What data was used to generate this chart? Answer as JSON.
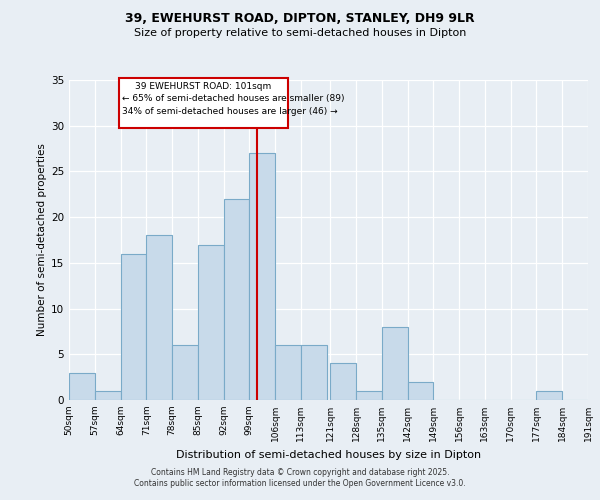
{
  "title": "39, EWEHURST ROAD, DIPTON, STANLEY, DH9 9LR",
  "subtitle": "Size of property relative to semi-detached houses in Dipton",
  "xlabel": "Distribution of semi-detached houses by size in Dipton",
  "ylabel": "Number of semi-detached properties",
  "footer_line1": "Contains HM Land Registry data © Crown copyright and database right 2025.",
  "footer_line2": "Contains public sector information licensed under the Open Government Licence v3.0.",
  "bins": [
    50,
    57,
    64,
    71,
    78,
    85,
    92,
    99,
    106,
    113,
    121,
    128,
    135,
    142,
    149,
    156,
    163,
    170,
    177,
    184,
    191
  ],
  "bin_labels": [
    "50sqm",
    "57sqm",
    "64sqm",
    "71sqm",
    "78sqm",
    "85sqm",
    "92sqm",
    "99sqm",
    "106sqm",
    "113sqm",
    "121sqm",
    "128sqm",
    "135sqm",
    "142sqm",
    "149sqm",
    "156sqm",
    "163sqm",
    "170sqm",
    "177sqm",
    "184sqm",
    "191sqm"
  ],
  "counts": [
    3,
    1,
    16,
    18,
    6,
    17,
    22,
    27,
    6,
    6,
    4,
    1,
    8,
    2,
    0,
    0,
    0,
    0,
    1,
    0
  ],
  "bar_color": "#c8daea",
  "bar_edge_color": "#7aaac8",
  "vline_x": 101,
  "vline_color": "#cc0000",
  "annotation_title": "39 EWEHURST ROAD: 101sqm",
  "annotation_line2": "← 65% of semi-detached houses are smaller (89)",
  "annotation_line3": "34% of semi-detached houses are larger (46) →",
  "annotation_box_color": "#cc0000",
  "ylim": [
    0,
    35
  ],
  "yticks": [
    0,
    5,
    10,
    15,
    20,
    25,
    30,
    35
  ],
  "background_color": "#e8eef4",
  "plot_bg_color": "#e8eef4"
}
